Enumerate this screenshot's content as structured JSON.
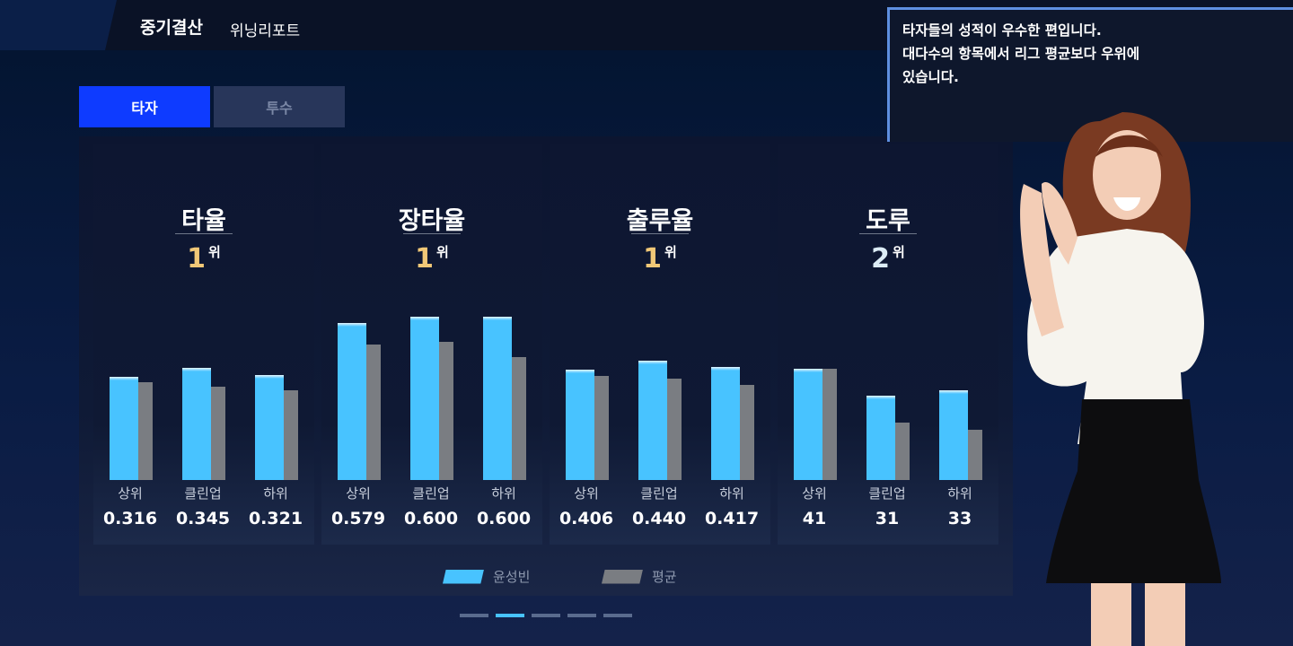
{
  "header": {
    "title": "중기결산",
    "subtitle": "위닝리포트"
  },
  "tabs": [
    {
      "label": "타자",
      "active": true
    },
    {
      "label": "투수",
      "active": false
    }
  ],
  "commentary": [
    "타자들의 성적이 우수한 편입니다.",
    "대다수의 항목에서 리그 평균보다 우위에",
    "있습니다."
  ],
  "colors": {
    "player": "#48c3ff",
    "average": "#7a7d82",
    "rank_gold": "#f1c877",
    "tab_active": "#0e3bff"
  },
  "chart_data": {
    "type": "bar",
    "legend": {
      "player": "윤성빈",
      "average": "평균",
      "placement": "bottom-center"
    },
    "categories": [
      "상위",
      "클린업",
      "하위"
    ],
    "groups": [
      {
        "title": "타율",
        "rank": "1",
        "rank_unit": "위",
        "ymax": 0.55,
        "values": [
          "0.316",
          "0.345",
          "0.321"
        ],
        "player": [
          0.316,
          0.345,
          0.321
        ],
        "average": [
          0.299,
          0.287,
          0.274
        ]
      },
      {
        "title": "장타율",
        "rank": "1",
        "rank_unit": "위",
        "ymax": 0.66,
        "values": [
          "0.579",
          "0.600",
          "0.600"
        ],
        "player": [
          0.579,
          0.6,
          0.6
        ],
        "average": [
          0.5,
          0.507,
          0.453
        ]
      },
      {
        "title": "출루율",
        "rank": "1",
        "rank_unit": "위",
        "ymax": 0.66,
        "values": [
          "0.406",
          "0.440",
          "0.417"
        ],
        "player": [
          0.406,
          0.44,
          0.417
        ],
        "average": [
          0.383,
          0.373,
          0.351
        ]
      },
      {
        "title": "도루",
        "rank": "2",
        "rank_unit": "위",
        "ymax": 66,
        "values": [
          "41",
          "31",
          "33"
        ],
        "player": [
          41,
          31,
          33
        ],
        "average": [
          41,
          21,
          18.5
        ]
      }
    ]
  },
  "pagination": {
    "pages": 5,
    "current": 2
  }
}
